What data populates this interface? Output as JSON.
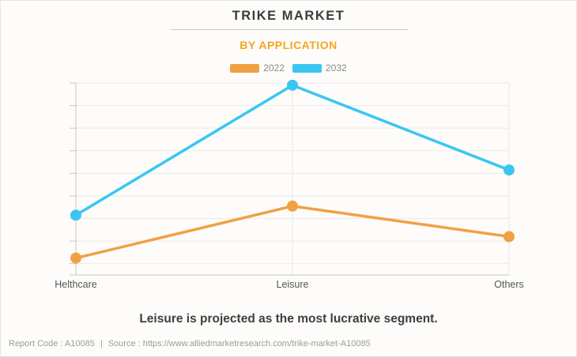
{
  "header": {
    "title": "TRIKE MARKET",
    "subtitle": "BY APPLICATION"
  },
  "chart_data": {
    "type": "line",
    "title": "TRIKE MARKET",
    "subtitle": "BY APPLICATION",
    "categories": [
      "Helthcare",
      "Leisure",
      "Others"
    ],
    "series": [
      {
        "name": "2022",
        "color": "#F0A143",
        "values": [
          0.75,
          3.05,
          1.7
        ]
      },
      {
        "name": "2032",
        "color": "#3BC6F2",
        "values": [
          2.65,
          8.4,
          4.65
        ]
      }
    ],
    "xlabel": "",
    "ylabel": "",
    "ylim": [
      0,
      8.5
    ],
    "gridlines": [
      0.5,
      1.5,
      2.5,
      3.5,
      4.5,
      5.5,
      6.5,
      7.5,
      8.5
    ],
    "grid": "on",
    "yaxis_tick_labels": [],
    "legend_position": "top"
  },
  "statement": "Leisure is projected as the most lucrative segment.",
  "footer": {
    "report_code": "Report Code : A10085",
    "separator": "|",
    "source": "Source : https://www.alliedmarketresearch.com/trike-market-A10085"
  },
  "colors": {
    "series_2022": "#F0A143",
    "series_2032": "#3BC6F2",
    "subtitle_accent": "#F6A41E",
    "background": "#FDFCFA",
    "axis": "#C8C6C2",
    "gridline": "#EBE9E5"
  }
}
